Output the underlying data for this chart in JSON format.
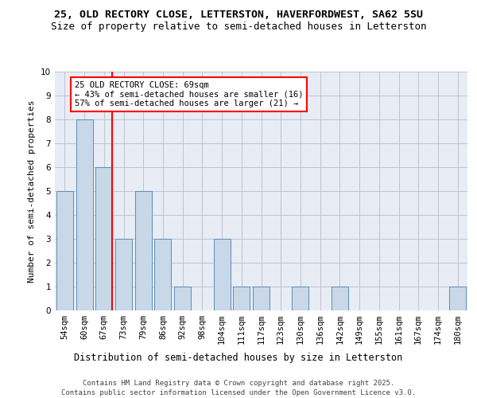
{
  "title1": "25, OLD RECTORY CLOSE, LETTERSTON, HAVERFORDWEST, SA62 5SU",
  "title2": "Size of property relative to semi-detached houses in Letterston",
  "xlabel": "Distribution of semi-detached houses by size in Letterston",
  "ylabel": "Number of semi-detached properties",
  "categories": [
    "54sqm",
    "60sqm",
    "67sqm",
    "73sqm",
    "79sqm",
    "86sqm",
    "92sqm",
    "98sqm",
    "104sqm",
    "111sqm",
    "117sqm",
    "123sqm",
    "130sqm",
    "136sqm",
    "142sqm",
    "149sqm",
    "155sqm",
    "161sqm",
    "167sqm",
    "174sqm",
    "180sqm"
  ],
  "values": [
    5,
    8,
    6,
    3,
    5,
    3,
    1,
    0,
    3,
    1,
    1,
    0,
    1,
    0,
    1,
    0,
    0,
    0,
    0,
    0,
    1
  ],
  "bar_color": "#c8d8e8",
  "bar_edge_color": "#5b8db8",
  "red_line_index": 2,
  "red_line_label": "25 OLD RECTORY CLOSE: 69sqm",
  "annotation_line1": "← 43% of semi-detached houses are smaller (16)",
  "annotation_line2": "57% of semi-detached houses are larger (21) →",
  "box_facecolor": "white",
  "box_edgecolor": "red",
  "ylim": [
    0,
    10
  ],
  "yticks": [
    0,
    1,
    2,
    3,
    4,
    5,
    6,
    7,
    8,
    9,
    10
  ],
  "grid_color": "#bbbbcc",
  "bg_color": "#e8ecf4",
  "footer": "Contains HM Land Registry data © Crown copyright and database right 2025.\nContains public sector information licensed under the Open Government Licence v3.0.",
  "title1_fontsize": 9.5,
  "title2_fontsize": 9,
  "xlabel_fontsize": 8.5,
  "ylabel_fontsize": 8,
  "tick_fontsize": 7.5,
  "annotation_fontsize": 7.5,
  "footer_fontsize": 6.5
}
